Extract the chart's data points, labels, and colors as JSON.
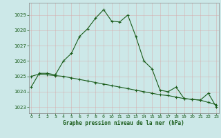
{
  "title": "Graphe pression niveau de la mer (hPa)",
  "bg_color": "#cce8e8",
  "grid_color": "#b0c8c8",
  "line_color": "#1a5c1a",
  "x_ticks": [
    0,
    1,
    2,
    3,
    4,
    5,
    6,
    7,
    8,
    9,
    10,
    11,
    12,
    13,
    14,
    15,
    16,
    17,
    18,
    19,
    20,
    21,
    22,
    23
  ],
  "y_ticks": [
    1023,
    1024,
    1025,
    1026,
    1027,
    1028,
    1029
  ],
  "ylim": [
    1022.6,
    1029.8
  ],
  "xlim": [
    -0.3,
    23.3
  ],
  "curve1_x": [
    0,
    1,
    2,
    3,
    4,
    5,
    6,
    7,
    8,
    9,
    10,
    11,
    12,
    13,
    14,
    15,
    16,
    17,
    18,
    19,
    20,
    21,
    22,
    23
  ],
  "curve1_y": [
    1024.3,
    1025.2,
    1025.2,
    1025.1,
    1026.0,
    1026.5,
    1027.6,
    1028.1,
    1028.8,
    1029.35,
    1028.6,
    1028.55,
    1029.0,
    1027.6,
    1026.0,
    1025.5,
    1024.1,
    1024.0,
    1024.3,
    1023.55,
    1023.5,
    1023.45,
    1023.9,
    1023.0
  ],
  "curve2_x": [
    0,
    1,
    2,
    3,
    4,
    5,
    6,
    7,
    8,
    9,
    10,
    11,
    12,
    13,
    14,
    15,
    16,
    17,
    18,
    19,
    20,
    21,
    22,
    23
  ],
  "curve2_y": [
    1025.0,
    1025.15,
    1025.1,
    1025.05,
    1025.0,
    1024.9,
    1024.8,
    1024.7,
    1024.6,
    1024.5,
    1024.4,
    1024.3,
    1024.2,
    1024.1,
    1024.0,
    1023.9,
    1023.8,
    1023.75,
    1023.65,
    1023.55,
    1023.5,
    1023.45,
    1023.3,
    1023.15
  ]
}
